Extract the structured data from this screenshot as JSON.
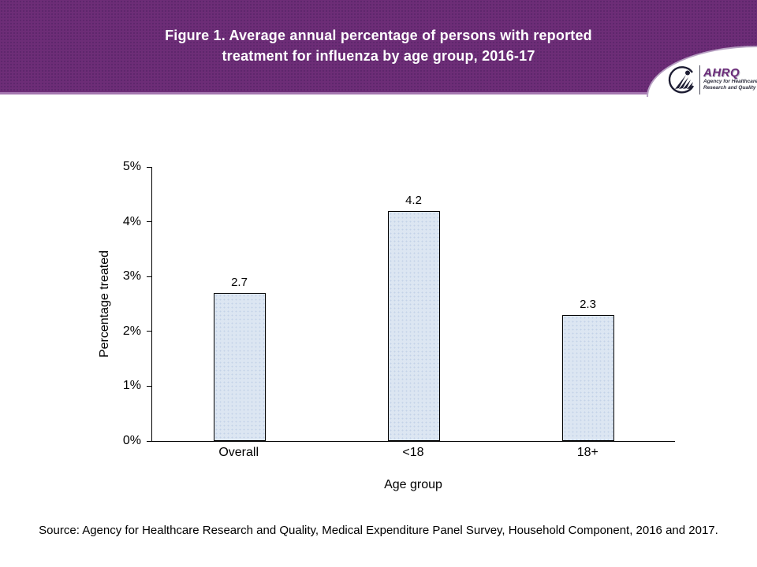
{
  "header": {
    "title_line1": "Figure 1. Average annual percentage of persons with reported",
    "title_line2": "treatment for influenza by age group, 2016-17",
    "background_color": "#6d2d77",
    "edge_color": "#a578b0",
    "logo": {
      "hhs_icon": "hhs-eagle-icon",
      "ahrq_text": "AHRQ",
      "tagline_line1": "Agency for Healthcare",
      "tagline_line2": "Research and Quality",
      "ahrq_color": "#6b2c79"
    }
  },
  "chart_data": {
    "type": "bar",
    "categories": [
      "Overall",
      "<18",
      "18+"
    ],
    "values": [
      2.7,
      4.2,
      2.3
    ],
    "value_labels": [
      "2.7",
      "4.2",
      "2.3"
    ],
    "title": "",
    "xlabel": "Age group",
    "ylabel": "Percentage treated",
    "ylim": [
      0,
      5
    ],
    "yticks": [
      0,
      1,
      2,
      3,
      4,
      5
    ],
    "ytick_labels": [
      "0%",
      "1%",
      "2%",
      "3%",
      "4%",
      "5%"
    ],
    "grid": false,
    "legend": false,
    "bar_fill": "#dce6f2",
    "bar_border": "#000000"
  },
  "footer": {
    "source": "Source: Agency for Healthcare Research and Quality, Medical Expenditure Panel Survey, Household Component, 2016 and 2017."
  }
}
